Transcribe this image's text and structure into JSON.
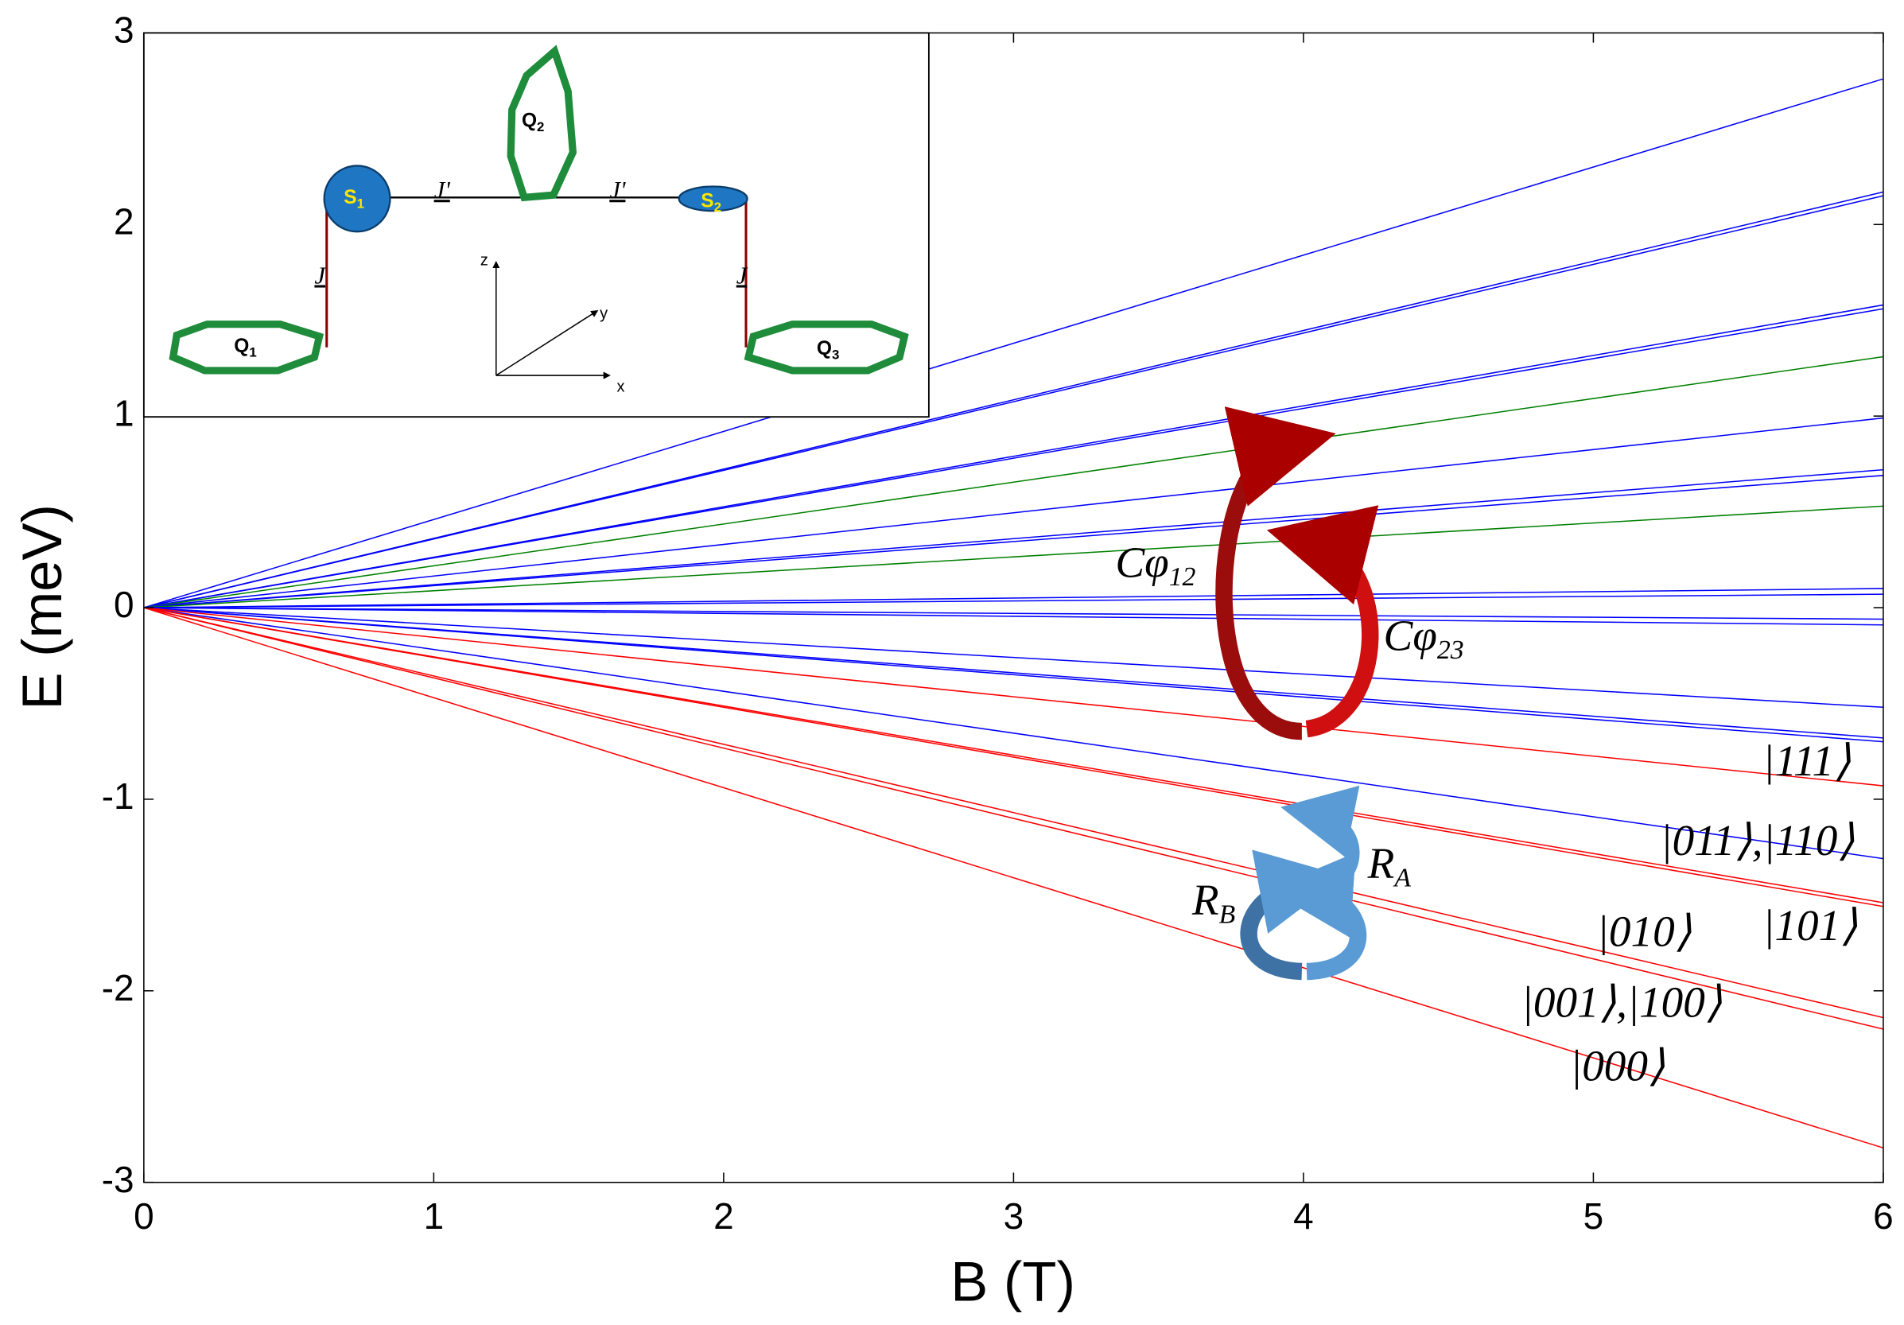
{
  "chart_data": {
    "type": "line",
    "x_label": "B (T)",
    "y_label": "E (meV)",
    "x": [
      0,
      6
    ],
    "xlim": [
      0,
      6
    ],
    "xticks": [
      0,
      1,
      2,
      3,
      4,
      5,
      6
    ],
    "ylim": [
      -3,
      3
    ],
    "yticks": [
      -3,
      -2,
      -1,
      0,
      1,
      2,
      3
    ],
    "series": [
      {
        "color": "#0000ff",
        "values": [
          0,
          2.76
        ]
      },
      {
        "color": "#0000ff",
        "values": [
          0,
          2.17
        ]
      },
      {
        "color": "#0000ff",
        "values": [
          0,
          2.15
        ]
      },
      {
        "color": "#0000ff",
        "values": [
          0,
          1.58
        ]
      },
      {
        "color": "#0000ff",
        "values": [
          0,
          1.56
        ]
      },
      {
        "color": "#008000",
        "values": [
          0,
          1.31
        ]
      },
      {
        "color": "#0000ff",
        "values": [
          0,
          0.99
        ]
      },
      {
        "color": "#0000ff",
        "values": [
          0,
          0.72
        ]
      },
      {
        "color": "#0000ff",
        "values": [
          0,
          0.69
        ]
      },
      {
        "color": "#008000",
        "values": [
          0,
          0.53
        ]
      },
      {
        "color": "#0000ff",
        "values": [
          0,
          0.1
        ]
      },
      {
        "color": "#0000ff",
        "values": [
          0,
          0.07
        ]
      },
      {
        "color": "#0000ff",
        "values": [
          0,
          -0.06
        ]
      },
      {
        "color": "#0000ff",
        "values": [
          0,
          -0.09
        ]
      },
      {
        "color": "#0000ff",
        "values": [
          0,
          -0.52
        ]
      },
      {
        "color": "#0000ff",
        "values": [
          0,
          -0.68
        ]
      },
      {
        "color": "#0000ff",
        "values": [
          0,
          -0.7
        ]
      },
      {
        "color": "#0000ff",
        "values": [
          0,
          -1.31
        ]
      },
      {
        "color": "#ff0000",
        "values": [
          0,
          -0.93
        ]
      },
      {
        "color": "#ff0000",
        "values": [
          0,
          -1.54
        ]
      },
      {
        "color": "#ff0000",
        "values": [
          0,
          -1.56
        ]
      },
      {
        "color": "#ff0000",
        "values": [
          0,
          -2.14
        ]
      },
      {
        "color": "#ff0000",
        "values": [
          0,
          -2.2
        ]
      },
      {
        "color": "#ff0000",
        "values": [
          0,
          -2.82
        ]
      }
    ],
    "annotations": [
      {
        "main": "Cφ",
        "sub": "12"
      },
      {
        "main": "Cφ",
        "sub": "23"
      },
      {
        "main": "R",
        "sub": "B"
      },
      {
        "main": "R",
        "sub": "A"
      }
    ],
    "state_labels": [
      "|111⟩",
      "|011⟩,|110⟩",
      "|101⟩",
      "|010⟩",
      "|001⟩,|100⟩",
      "|000⟩"
    ],
    "inset": {
      "Q1": {
        "main": "Q",
        "sub": "1"
      },
      "Q2": {
        "main": "Q",
        "sub": "2"
      },
      "Q3": {
        "main": "Q",
        "sub": "3"
      },
      "S1": {
        "main": "S",
        "sub": "1"
      },
      "S2": {
        "main": "S",
        "sub": "2"
      },
      "J_prime": "J'",
      "J": "J",
      "axes": [
        "z",
        "y",
        "x"
      ]
    }
  }
}
